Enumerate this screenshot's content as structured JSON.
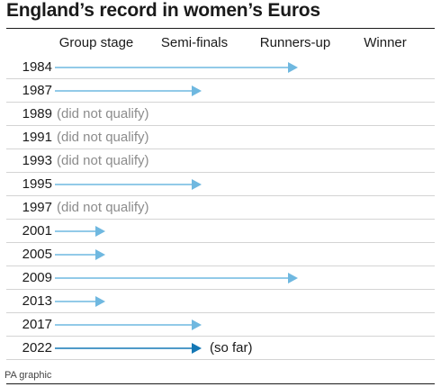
{
  "title": "England’s record in women’s Euros",
  "source": "PA graphic",
  "colors": {
    "arrow": "#6fb8e0",
    "arrow_current": "#1578b5",
    "not_qualified_text": "#8c8c8c"
  },
  "chart_data": {
    "type": "bar",
    "title": "England’s record in women’s Euros",
    "stages": [
      "Group stage",
      "Semi-finals",
      "Runners-up",
      "Winner"
    ],
    "categories": [
      "1984",
      "1987",
      "1989",
      "1991",
      "1993",
      "1995",
      "1997",
      "2001",
      "2005",
      "2009",
      "2013",
      "2017",
      "2022"
    ],
    "results": [
      {
        "year": "1984",
        "stage_reached": 3,
        "note": ""
      },
      {
        "year": "1987",
        "stage_reached": 2,
        "note": ""
      },
      {
        "year": "1989",
        "stage_reached": 0,
        "note": "(did not qualify)"
      },
      {
        "year": "1991",
        "stage_reached": 0,
        "note": "(did not qualify)"
      },
      {
        "year": "1993",
        "stage_reached": 0,
        "note": "(did not qualify)"
      },
      {
        "year": "1995",
        "stage_reached": 2,
        "note": ""
      },
      {
        "year": "1997",
        "stage_reached": 0,
        "note": "(did not qualify)"
      },
      {
        "year": "2001",
        "stage_reached": 1,
        "note": ""
      },
      {
        "year": "2005",
        "stage_reached": 1,
        "note": ""
      },
      {
        "year": "2009",
        "stage_reached": 3,
        "note": ""
      },
      {
        "year": "2013",
        "stage_reached": 1,
        "note": ""
      },
      {
        "year": "2017",
        "stage_reached": 2,
        "note": ""
      },
      {
        "year": "2022",
        "stage_reached": 2,
        "note": "(so far)",
        "current": true
      }
    ],
    "xlabel": "",
    "ylabel": "",
    "grid": true
  }
}
